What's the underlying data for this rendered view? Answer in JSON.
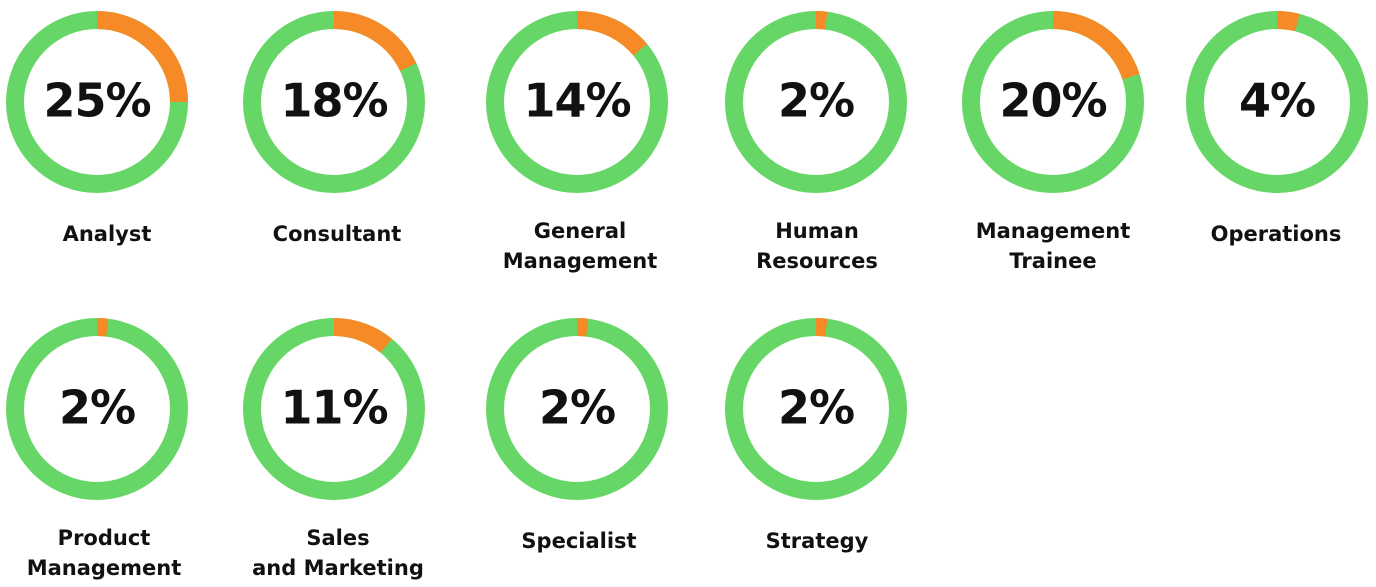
{
  "chart_data": [
    {
      "type": "donut",
      "label": [
        "Analyst"
      ],
      "values": [
        25
      ],
      "value_labels": [
        "25%"
      ],
      "ylim": [
        0,
        100
      ],
      "color": "#f68a27",
      "track_color": "#66d767"
    },
    {
      "type": "donut",
      "label": [
        "Consultant"
      ],
      "values": [
        18
      ],
      "value_labels": [
        "18%"
      ],
      "ylim": [
        0,
        100
      ],
      "color": "#f68a27",
      "track_color": "#66d767"
    },
    {
      "type": "donut",
      "label": [
        "General",
        "Management"
      ],
      "values": [
        14
      ],
      "value_labels": [
        "14%"
      ],
      "ylim": [
        0,
        100
      ],
      "color": "#f68a27",
      "track_color": "#66d767"
    },
    {
      "type": "donut",
      "label": [
        "Human",
        "Resources"
      ],
      "values": [
        2
      ],
      "value_labels": [
        "2%"
      ],
      "ylim": [
        0,
        100
      ],
      "color": "#f68a27",
      "track_color": "#66d767"
    },
    {
      "type": "donut",
      "label": [
        "Management",
        "Trainee"
      ],
      "values": [
        20
      ],
      "value_labels": [
        "20%"
      ],
      "ylim": [
        0,
        100
      ],
      "color": "#f68a27",
      "track_color": "#66d767"
    },
    {
      "type": "donut",
      "label": [
        "Operations"
      ],
      "values": [
        4
      ],
      "value_labels": [
        "4%"
      ],
      "ylim": [
        0,
        100
      ],
      "color": "#f68a27",
      "track_color": "#66d767"
    },
    {
      "type": "donut",
      "label": [
        "Product",
        "Management"
      ],
      "values": [
        2
      ],
      "value_labels": [
        "2%"
      ],
      "ylim": [
        0,
        100
      ],
      "color": "#f68a27",
      "track_color": "#66d767"
    },
    {
      "type": "donut",
      "label": [
        "Sales",
        "and Marketing"
      ],
      "values": [
        11
      ],
      "value_labels": [
        "11%"
      ],
      "ylim": [
        0,
        100
      ],
      "color": "#f68a27",
      "track_color": "#66d767"
    },
    {
      "type": "donut",
      "label": [
        "Specialist"
      ],
      "values": [
        2
      ],
      "value_labels": [
        "2%"
      ],
      "ylim": [
        0,
        100
      ],
      "color": "#f68a27",
      "track_color": "#66d767"
    },
    {
      "type": "donut",
      "label": [
        "Strategy"
      ],
      "values": [
        2
      ],
      "value_labels": [
        "2%"
      ],
      "ylim": [
        0,
        100
      ],
      "color": "#f68a27",
      "track_color": "#66d767"
    }
  ]
}
